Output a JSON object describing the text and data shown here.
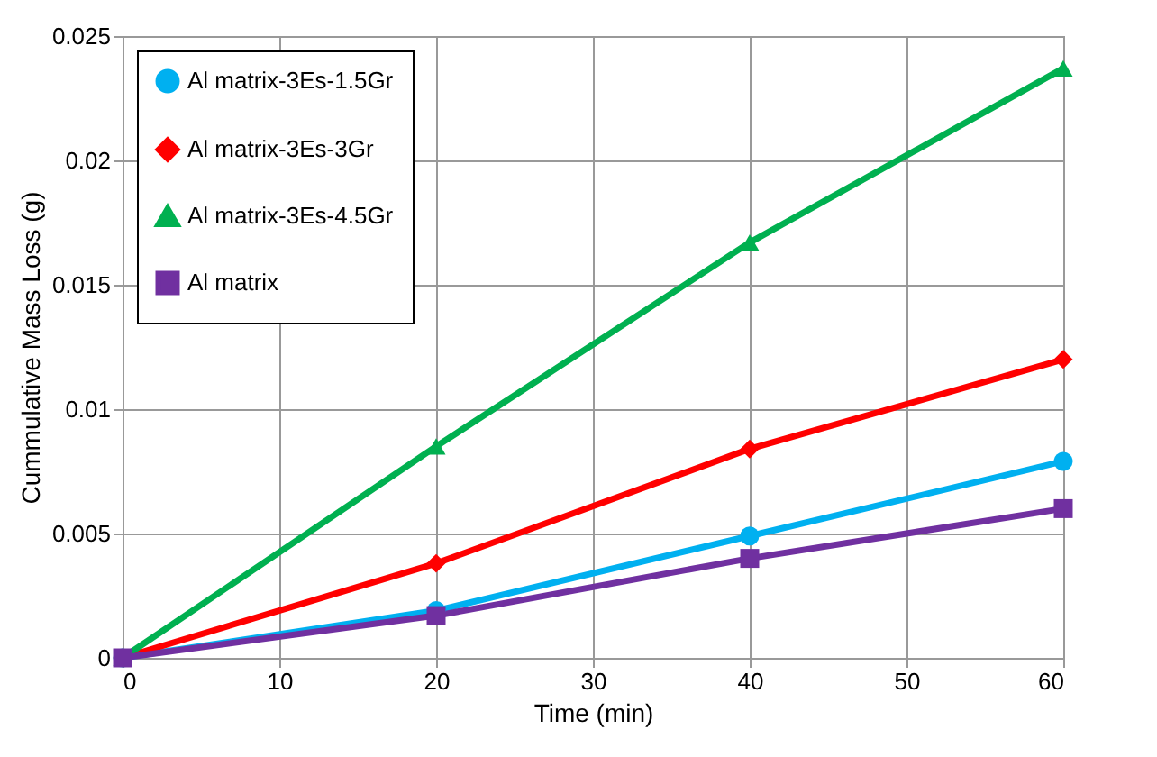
{
  "chart_data": {
    "type": "line",
    "xlabel": "Time (min)",
    "ylabel": "Cummulative Mass Loss (g)",
    "x": [
      0,
      20,
      40,
      60
    ],
    "series": [
      {
        "name": "Al matrix-3Es-1.5Gr",
        "color": "#00b0f0",
        "marker": "circle",
        "values": [
          0,
          0.0019,
          0.0049,
          0.0079
        ]
      },
      {
        "name": "Al matrix-3Es-3Gr",
        "color": "#ff0000",
        "marker": "diamond",
        "values": [
          0,
          0.0038,
          0.0084,
          0.012
        ]
      },
      {
        "name": "Al matrix-3Es-4.5Gr",
        "color": "#00b050",
        "marker": "triangle",
        "values": [
          0,
          0.0085,
          0.0167,
          0.0237
        ]
      },
      {
        "name": "Al matrix",
        "color": "#7030a0",
        "marker": "square",
        "values": [
          0,
          0.0017,
          0.004,
          0.006
        ]
      }
    ],
    "xlim": [
      0,
      60
    ],
    "xticks": [
      0,
      10,
      20,
      30,
      40,
      50,
      60
    ],
    "ylim": [
      0,
      0.025
    ],
    "yticks": [
      0,
      0.005,
      0.01,
      0.015,
      0.02,
      0.025
    ],
    "grid": true,
    "legend": "top left",
    "line_style": "solid"
  }
}
